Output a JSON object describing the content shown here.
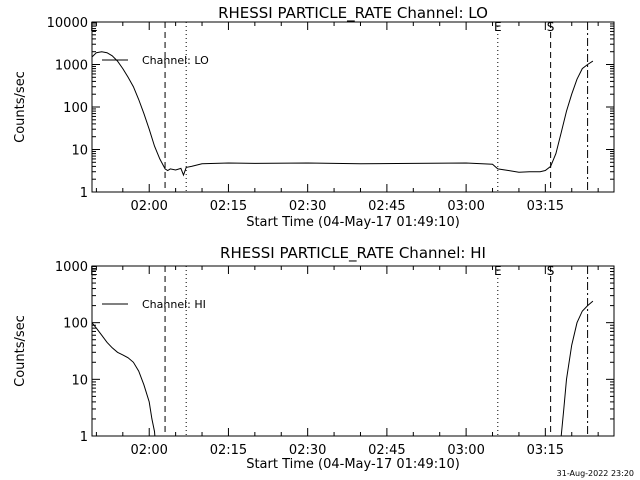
{
  "footer": {
    "timestamp": "31-Aug-2022 23:20"
  },
  "chart_data": [
    {
      "type": "line",
      "title": "RHESSI PARTICLE_RATE Channel: LO",
      "xlabel": "Start Time (04-May-17 01:49:10)",
      "ylabel": "Counts/sec",
      "x_ticks": [
        "02:00",
        "02:15",
        "02:30",
        "02:45",
        "03:00",
        "03:15"
      ],
      "y_ticks": [
        "1",
        "10",
        "100",
        "1000",
        "10000"
      ],
      "y_scale": "log",
      "ylim": [
        1,
        10000
      ],
      "xlim": [
        "01:49:10",
        "03:28:00"
      ],
      "legend": {
        "position": "top-left",
        "entries": [
          "Channel: LO"
        ]
      },
      "event_markers": [
        {
          "time": "01:49:30",
          "style": "none",
          "label": "E"
        },
        {
          "time": "02:03:00",
          "style": "dashed",
          "label": ""
        },
        {
          "time": "02:07:00",
          "style": "dotted",
          "label": ""
        },
        {
          "time": "03:06:00",
          "style": "dotted",
          "label": "E"
        },
        {
          "time": "03:16:00",
          "style": "dashed",
          "label": "S"
        },
        {
          "time": "03:23:00",
          "style": "dashdot",
          "label": ""
        }
      ],
      "series": [
        {
          "name": "Channel: LO",
          "x": [
            "01:49:10",
            "01:50:00",
            "01:51:00",
            "01:52:00",
            "01:53:00",
            "01:54:00",
            "01:55:00",
            "01:56:00",
            "01:57:00",
            "01:58:00",
            "01:59:00",
            "02:00:00",
            "02:01:00",
            "02:02:00",
            "02:03:00",
            "02:03:30",
            "02:04:00",
            "02:05:00",
            "02:06:00",
            "02:06:30",
            "02:07:00",
            "02:08:00",
            "02:10:00",
            "02:15:00",
            "02:20:00",
            "02:30:00",
            "02:40:00",
            "02:50:00",
            "03:00:00",
            "03:05:00",
            "03:06:00",
            "03:08:00",
            "03:10:00",
            "03:12:00",
            "03:14:00",
            "03:15:00",
            "03:16:00",
            "03:17:00",
            "03:18:00",
            "03:19:00",
            "03:20:00",
            "03:21:00",
            "03:22:00",
            "03:23:00",
            "03:24:00"
          ],
          "values": [
            1500,
            1900,
            2000,
            1900,
            1600,
            1200,
            800,
            500,
            300,
            150,
            70,
            30,
            12,
            6,
            3.5,
            3.2,
            3.5,
            3.3,
            3.6,
            2.5,
            3.8,
            4.0,
            4.6,
            4.8,
            4.7,
            4.8,
            4.6,
            4.7,
            4.8,
            4.5,
            3.5,
            3.2,
            2.9,
            3.0,
            3.0,
            3.2,
            4,
            8,
            25,
            80,
            200,
            450,
            800,
            1000,
            1200
          ]
        }
      ]
    },
    {
      "type": "line",
      "title": "RHESSI PARTICLE_RATE Channel: HI",
      "xlabel": "Start Time (04-May-17 01:49:10)",
      "ylabel": "Counts/sec",
      "x_ticks": [
        "02:00",
        "02:15",
        "02:30",
        "02:45",
        "03:00",
        "03:15"
      ],
      "y_ticks": [
        "1",
        "10",
        "100",
        "1000"
      ],
      "y_scale": "log",
      "ylim": [
        1,
        1000
      ],
      "xlim": [
        "01:49:10",
        "03:28:00"
      ],
      "legend": {
        "position": "top-left",
        "entries": [
          "Channel: HI"
        ]
      },
      "event_markers": [
        {
          "time": "01:49:30",
          "style": "none",
          "label": "E"
        },
        {
          "time": "02:03:00",
          "style": "dashed",
          "label": ""
        },
        {
          "time": "02:07:00",
          "style": "dotted",
          "label": ""
        },
        {
          "time": "03:06:00",
          "style": "dotted",
          "label": "E"
        },
        {
          "time": "03:16:00",
          "style": "dashed",
          "label": "S"
        },
        {
          "time": "03:23:00",
          "style": "dashdot",
          "label": ""
        }
      ],
      "series": [
        {
          "name": "Channel: HI",
          "x": [
            "01:49:10",
            "01:50:00",
            "01:51:00",
            "01:52:00",
            "01:53:00",
            "01:54:00",
            "01:55:00",
            "01:56:00",
            "01:57:00",
            "01:58:00",
            "01:59:00",
            "02:00:00",
            "02:00:30",
            "02:01:00",
            "02:01:20"
          ],
          "values": [
            100,
            80,
            60,
            45,
            36,
            30,
            27,
            24,
            20,
            14,
            8,
            4,
            2,
            1.2,
            0.5
          ]
        },
        {
          "name": "",
          "x": [
            "03:17:40",
            "03:18:00",
            "03:18:30",
            "03:19:00",
            "03:20:00",
            "03:21:00",
            "03:22:00",
            "03:23:00",
            "03:24:00"
          ],
          "values": [
            0.5,
            1,
            3,
            10,
            40,
            100,
            160,
            200,
            240
          ]
        }
      ]
    }
  ]
}
